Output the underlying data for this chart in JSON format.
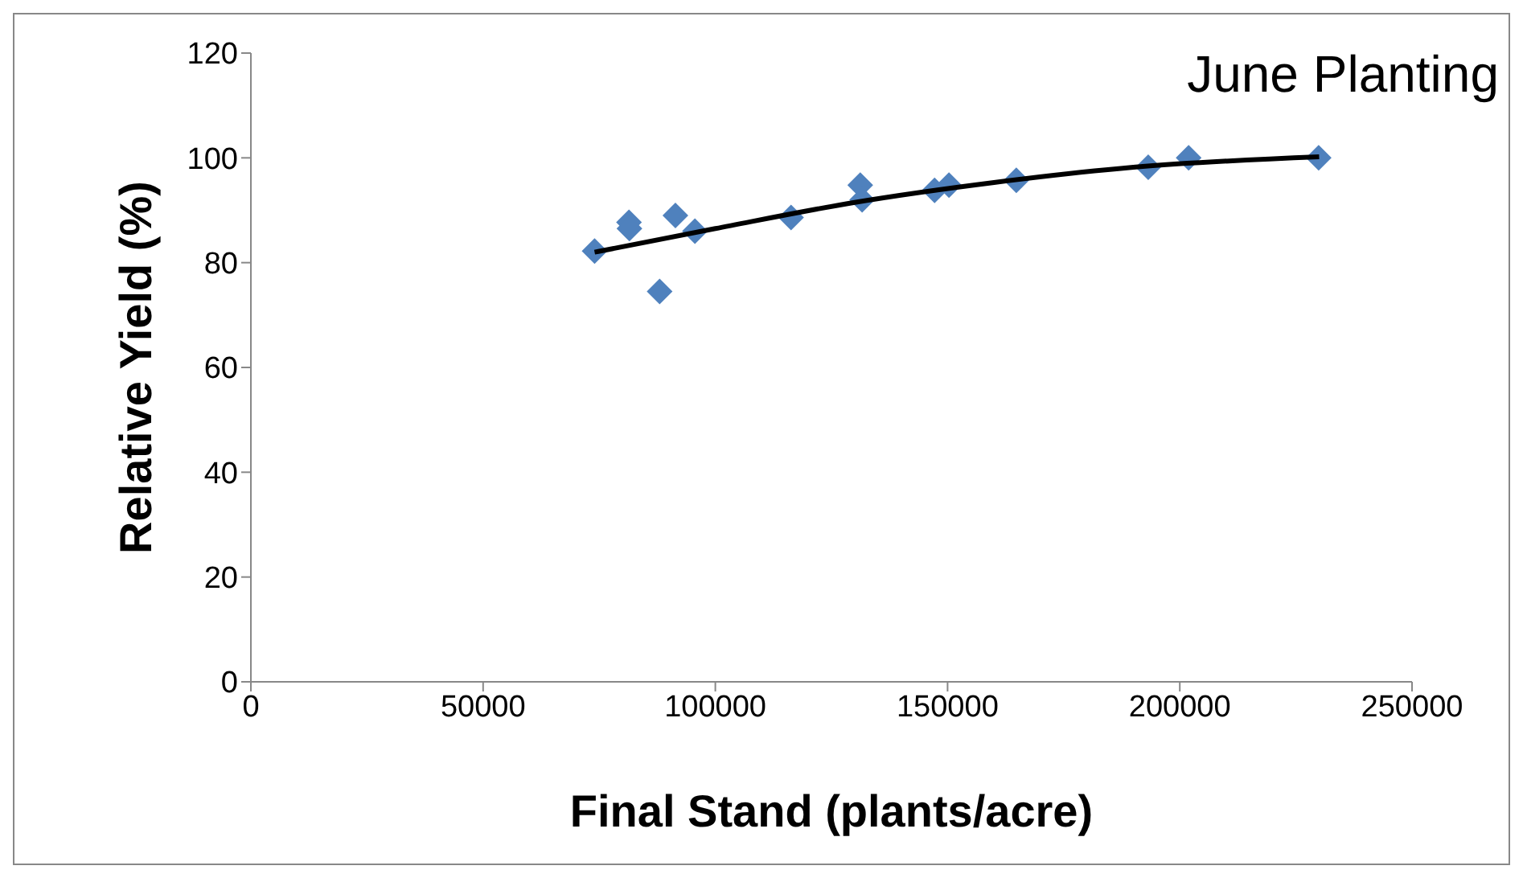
{
  "chart_data": {
    "type": "scatter",
    "title": "June Planting",
    "xlabel": "Final Stand (plants/acre)",
    "ylabel": "Relative Yield (%)",
    "xlim": [
      0,
      250000
    ],
    "xticks": [
      0,
      50000,
      100000,
      150000,
      200000,
      250000
    ],
    "ylim": [
      0,
      120
    ],
    "yticks": [
      0,
      20,
      40,
      60,
      80,
      100,
      120
    ],
    "series": [
      {
        "color": "#4f81bd",
        "marker": "diamond",
        "x": [
          74000,
          81400,
          81500,
          88000,
          91400,
          95600,
          116300,
          131200,
          131600,
          147200,
          150300,
          164800,
          193200,
          201900,
          229900
        ],
        "values": [
          82.2,
          87.7,
          86.5,
          74.5,
          89,
          86,
          88.6,
          94.8,
          92,
          93.8,
          94.8,
          95.7,
          98.2,
          100,
          100
        ]
      },
      {
        "type": "line",
        "color": "#000000",
        "marker": "none",
        "line_style": "solid",
        "x": [
          74000,
          100000,
          130000,
          160000,
          190000,
          230000
        ],
        "values": [
          82,
          86.5,
          91.5,
          95.3,
          98.2,
          100.2
        ]
      }
    ]
  }
}
